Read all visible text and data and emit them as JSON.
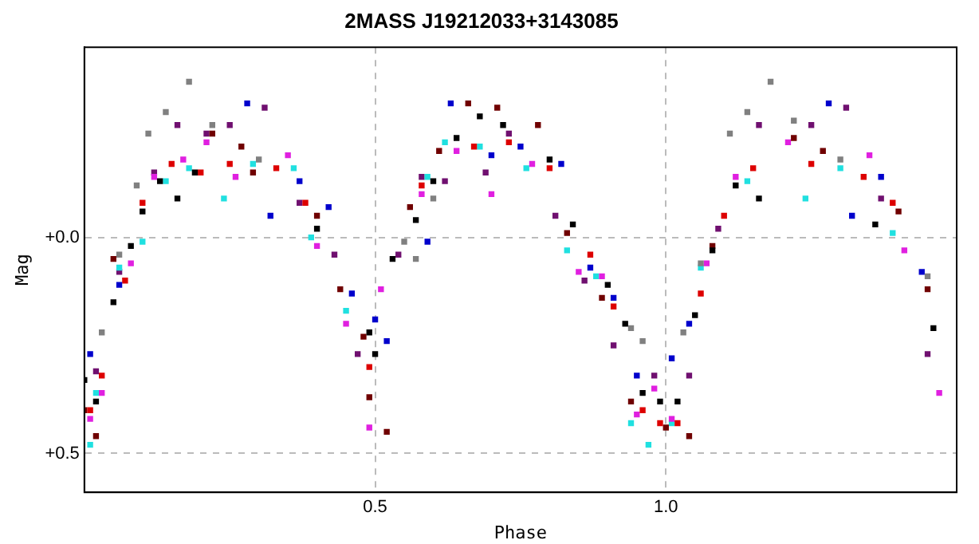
{
  "chart_data": {
    "type": "scatter",
    "title": "2MASS J19212033+3143085",
    "xlabel": "Phase",
    "ylabel": "Mag",
    "xlim": [
      0,
      1.5
    ],
    "xticks": [
      0.5,
      {
        "value": 1,
        "label": "1.0"
      }
    ],
    "ylim": [
      0.59,
      -0.44
    ],
    "yticks": [
      {
        "value": 0,
        "label": "+0.0"
      },
      {
        "value": 0.5,
        "label": "+0.5"
      }
    ],
    "grid": true,
    "legend": false,
    "marker": "square",
    "series": [
      {
        "color": "#000000",
        "x": [
          0.0,
          0.02,
          0.05,
          0.08,
          0.1,
          0.13,
          0.16,
          0.19,
          0.4,
          0.49,
          0.5,
          0.53,
          0.57,
          0.6,
          0.64,
          0.68,
          0.72,
          0.8,
          0.84,
          0.9,
          0.93,
          0.96,
          0.99,
          1.02,
          1.05,
          1.08,
          1.12,
          1.16,
          1.36,
          1.46
        ],
        "values": [
          0.33,
          0.38,
          0.15,
          0.02,
          -0.06,
          -0.13,
          -0.09,
          -0.15,
          -0.02,
          0.22,
          0.27,
          0.05,
          -0.04,
          -0.13,
          -0.23,
          -0.28,
          -0.26,
          -0.18,
          -0.03,
          0.11,
          0.2,
          0.36,
          0.38,
          0.38,
          0.18,
          0.03,
          -0.12,
          -0.09,
          -0.03,
          0.21
        ]
      },
      {
        "color": "#808080",
        "x": [
          0.03,
          0.06,
          0.09,
          0.11,
          0.14,
          0.18,
          0.22,
          0.3,
          0.55,
          0.57,
          0.6,
          0.94,
          0.96,
          1.03,
          1.06,
          1.11,
          1.14,
          1.18,
          1.22,
          1.3,
          1.45
        ],
        "values": [
          0.22,
          0.04,
          -0.12,
          -0.24,
          -0.29,
          -0.36,
          -0.26,
          -0.18,
          0.01,
          0.05,
          -0.09,
          0.21,
          0.24,
          0.22,
          0.06,
          -0.24,
          -0.29,
          -0.36,
          -0.27,
          -0.18,
          0.09
        ]
      },
      {
        "color": "#0000cc",
        "x": [
          0.01,
          0.06,
          0.28,
          0.32,
          0.37,
          0.42,
          0.46,
          0.5,
          0.52,
          0.59,
          0.63,
          0.7,
          0.75,
          0.82,
          0.87,
          0.91,
          0.95,
          1.01,
          1.04,
          1.28,
          1.32,
          1.37,
          1.44
        ],
        "values": [
          0.27,
          0.11,
          -0.31,
          -0.05,
          -0.13,
          -0.07,
          0.13,
          0.19,
          0.24,
          0.01,
          -0.31,
          -0.19,
          -0.21,
          -0.17,
          0.07,
          0.14,
          0.32,
          0.28,
          0.2,
          -0.31,
          -0.05,
          -0.14,
          0.08
        ]
      },
      {
        "color": "#dd0000",
        "x": [
          0.01,
          0.03,
          0.07,
          0.1,
          0.15,
          0.2,
          0.25,
          0.33,
          0.38,
          0.49,
          0.58,
          0.67,
          0.73,
          0.8,
          0.87,
          0.91,
          0.96,
          0.99,
          1.02,
          1.06,
          1.1,
          1.15,
          1.25,
          1.34,
          1.39
        ],
        "values": [
          0.4,
          0.32,
          0.1,
          -0.08,
          -0.17,
          -0.15,
          -0.17,
          -0.16,
          -0.08,
          0.3,
          -0.12,
          -0.21,
          -0.22,
          -0.16,
          0.04,
          0.16,
          0.4,
          0.43,
          0.43,
          0.13,
          -0.05,
          -0.16,
          -0.17,
          -0.14,
          -0.08
        ]
      },
      {
        "color": "#700000",
        "x": [
          0.0,
          0.02,
          0.05,
          0.22,
          0.27,
          0.29,
          0.4,
          0.44,
          0.48,
          0.49,
          0.52,
          0.56,
          0.61,
          0.66,
          0.71,
          0.78,
          0.83,
          0.89,
          0.94,
          1.0,
          1.04,
          1.08,
          1.22,
          1.27,
          1.4,
          1.45
        ],
        "values": [
          0.4,
          0.46,
          0.05,
          -0.24,
          -0.21,
          -0.15,
          -0.05,
          0.12,
          0.23,
          0.37,
          0.45,
          -0.07,
          -0.2,
          -0.31,
          -0.3,
          -0.26,
          -0.01,
          0.14,
          0.38,
          0.44,
          0.46,
          0.02,
          -0.23,
          -0.2,
          -0.06,
          0.12
        ]
      },
      {
        "color": "#e020e0",
        "x": [
          0.01,
          0.03,
          0.08,
          0.12,
          0.17,
          0.21,
          0.26,
          0.35,
          0.4,
          0.45,
          0.49,
          0.51,
          0.58,
          0.64,
          0.7,
          0.77,
          0.85,
          0.89,
          0.95,
          0.98,
          1.01,
          1.07,
          1.12,
          1.21,
          1.35,
          1.41,
          1.47
        ],
        "values": [
          0.42,
          0.36,
          0.06,
          -0.14,
          -0.18,
          -0.22,
          -0.14,
          -0.19,
          0.02,
          0.2,
          0.44,
          0.12,
          -0.1,
          -0.2,
          -0.1,
          -0.17,
          0.08,
          0.09,
          0.41,
          0.35,
          0.42,
          0.06,
          -0.14,
          -0.22,
          -0.19,
          0.03,
          0.36
        ]
      },
      {
        "color": "#20e0e0",
        "x": [
          0.01,
          0.02,
          0.06,
          0.1,
          0.14,
          0.18,
          0.24,
          0.29,
          0.36,
          0.39,
          0.45,
          0.59,
          0.62,
          0.68,
          0.76,
          0.83,
          0.88,
          0.94,
          0.97,
          1.01,
          1.06,
          1.14,
          1.24,
          1.3,
          1.39
        ],
        "values": [
          0.48,
          0.36,
          0.07,
          0.01,
          -0.13,
          -0.16,
          -0.09,
          -0.17,
          -0.16,
          0.0,
          0.17,
          -0.14,
          -0.22,
          -0.21,
          -0.16,
          0.03,
          0.09,
          0.43,
          0.48,
          0.43,
          0.07,
          -0.13,
          -0.09,
          -0.16,
          -0.01
        ]
      },
      {
        "color": "#701070",
        "x": [
          0.02,
          0.06,
          0.12,
          0.16,
          0.21,
          0.25,
          0.31,
          0.37,
          0.43,
          0.47,
          0.54,
          0.58,
          0.62,
          0.69,
          0.73,
          0.81,
          0.86,
          0.91,
          0.98,
          1.04,
          1.09,
          1.16,
          1.25,
          1.31,
          1.37,
          1.45
        ],
        "values": [
          0.31,
          0.08,
          -0.15,
          -0.26,
          -0.24,
          -0.26,
          -0.3,
          -0.08,
          0.04,
          0.27,
          0.04,
          -0.14,
          -0.13,
          -0.15,
          -0.24,
          -0.05,
          0.1,
          0.25,
          0.32,
          0.32,
          -0.02,
          -0.26,
          -0.26,
          -0.3,
          -0.09,
          0.27
        ]
      }
    ]
  }
}
